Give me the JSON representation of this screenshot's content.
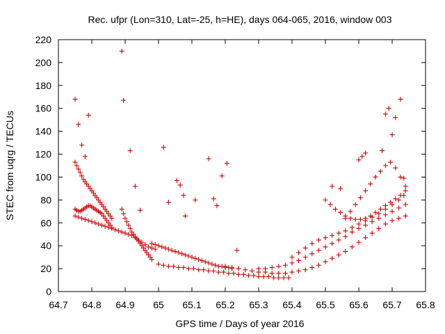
{
  "chart_data": {
    "type": "scatter",
    "title": "Rec. ufpr (Lon=310, Lat=-25, h=HE), days 064-065, 2016, window 003",
    "xlabel": "GPS time / Days of year 2016",
    "ylabel": "STEC from uqrg / TECUs",
    "xlim": [
      64.7,
      65.8
    ],
    "ylim": [
      0,
      220
    ],
    "xticks": [
      "64.7",
      "64.8",
      "64.9",
      "65",
      "65.1",
      "65.2",
      "65.3",
      "65.4",
      "65.5",
      "65.6",
      "65.7",
      "65.8"
    ],
    "yticks": [
      "0",
      "20",
      "40",
      "60",
      "80",
      "100",
      "120",
      "140",
      "160",
      "180",
      "200",
      "220"
    ],
    "grid": false,
    "legend": "none",
    "marker": "plus",
    "color": "#cc0000",
    "series": [
      {
        "x": [
          64.75,
          64.755,
          64.76,
          64.765,
          64.77,
          64.775,
          64.78,
          64.785,
          64.79,
          64.795,
          64.8,
          64.805,
          64.81,
          64.815,
          64.82,
          64.825,
          64.83,
          64.835,
          64.84,
          64.845,
          64.85,
          64.855,
          64.86
        ],
        "y": [
          113,
          110,
          107,
          104,
          101,
          98,
          96,
          94,
          92,
          90,
          88,
          86,
          84,
          82,
          80,
          78,
          76,
          74,
          72,
          70,
          68,
          66,
          64
        ]
      },
      {
        "x": [
          64.75,
          64.755,
          64.76,
          64.765,
          64.77,
          64.775,
          64.78,
          64.785,
          64.79,
          64.795,
          64.8,
          64.805,
          64.81,
          64.815,
          64.82,
          64.825,
          64.83,
          64.835,
          64.84,
          64.845,
          64.85,
          64.855,
          64.86
        ],
        "y": [
          72,
          71,
          70,
          70,
          71,
          72,
          73,
          74,
          75,
          75,
          74,
          73,
          72,
          71,
          70,
          69,
          68,
          66,
          64,
          62,
          60,
          58,
          56
        ]
      },
      {
        "x": [
          64.75,
          64.76,
          64.77,
          64.78,
          64.79,
          64.8,
          64.81,
          64.82,
          64.83,
          64.84,
          64.85,
          64.86,
          64.87,
          64.88,
          64.89,
          64.9,
          64.91,
          64.92,
          64.93,
          64.94,
          64.95,
          64.96,
          64.97,
          64.98,
          64.99
        ],
        "y": [
          66,
          65,
          64,
          63,
          62,
          61,
          60,
          59,
          58,
          57,
          56,
          55,
          54,
          53,
          52,
          51,
          50,
          49,
          47,
          45,
          43,
          41,
          39,
          38,
          37
        ]
      },
      {
        "x": [
          64.89,
          64.895,
          64.9,
          64.905,
          64.91,
          64.915,
          64.92,
          64.925,
          64.93,
          64.935,
          64.94,
          64.945,
          64.95,
          64.955,
          64.96,
          64.965,
          64.97,
          64.975,
          64.98
        ],
        "y": [
          72,
          68,
          64,
          61,
          58,
          55,
          52,
          50,
          48,
          46,
          44,
          42,
          40,
          38,
          36,
          34,
          32,
          30,
          28
        ]
      },
      {
        "x": [
          64.98,
          64.99,
          65.0,
          65.01,
          65.02,
          65.03,
          65.04,
          65.05,
          65.06,
          65.07,
          65.08,
          65.09,
          65.1,
          65.11,
          65.12,
          65.13,
          65.14,
          65.15,
          65.16,
          65.17,
          65.18,
          65.19,
          65.2,
          65.21,
          65.22
        ],
        "y": [
          42,
          41,
          40,
          39,
          38,
          37,
          36,
          35,
          34,
          33,
          32,
          31,
          30,
          29,
          28,
          27,
          26,
          25,
          24,
          23,
          22,
          22,
          21,
          21,
          20
        ]
      },
      {
        "x": [
          65.0,
          65.015,
          65.03,
          65.045,
          65.06,
          65.075,
          65.09,
          65.105,
          65.12,
          65.135,
          65.15,
          65.165,
          65.18,
          65.195,
          65.21,
          65.225,
          65.24,
          65.255,
          65.27,
          65.285,
          65.3,
          65.315,
          65.33,
          65.345,
          65.36,
          65.375,
          65.39
        ],
        "y": [
          24,
          23,
          22,
          22,
          21,
          21,
          20,
          20,
          19,
          19,
          18,
          18,
          17,
          17,
          16,
          16,
          15,
          15,
          14,
          14,
          13,
          13,
          13,
          12,
          12,
          12,
          12
        ]
      },
      {
        "x": [
          65.2,
          65.22,
          65.24,
          65.26,
          65.28,
          65.3,
          65.32,
          65.34,
          65.36,
          65.38,
          65.4,
          65.42,
          65.44,
          65.46,
          65.48,
          65.5,
          65.52,
          65.54,
          65.56,
          65.58,
          65.6,
          65.62,
          65.64,
          65.66,
          65.68,
          65.7,
          65.72,
          65.74
        ],
        "y": [
          22,
          21,
          20,
          19,
          18,
          17,
          17,
          16,
          16,
          16,
          17,
          18,
          19,
          21,
          23,
          26,
          29,
          32,
          35,
          39,
          43,
          47,
          51,
          55,
          59,
          62,
          64,
          66
        ]
      },
      {
        "x": [
          65.3,
          65.32,
          65.34,
          65.36,
          65.38,
          65.4,
          65.42,
          65.44,
          65.46,
          65.48,
          65.5,
          65.52,
          65.54,
          65.56,
          65.58,
          65.6,
          65.62,
          65.64,
          65.66,
          65.68,
          65.7,
          65.72
        ],
        "y": [
          20,
          20,
          21,
          22,
          23,
          25,
          27,
          30,
          33,
          36,
          39,
          42,
          45,
          48,
          52,
          55,
          58,
          61,
          64,
          67,
          70,
          73
        ]
      },
      {
        "x": [
          65.4,
          65.42,
          65.44,
          65.46,
          65.48,
          65.5,
          65.52,
          65.54,
          65.56,
          65.58,
          65.6,
          65.62,
          65.64,
          65.66,
          65.68,
          65.7,
          65.72,
          65.735
        ],
        "y": [
          30,
          34,
          38,
          42,
          45,
          47,
          49,
          51,
          53,
          56,
          59,
          62,
          65,
          68,
          72,
          76,
          80,
          84
        ]
      },
      {
        "x": [
          65.5,
          65.515,
          65.53,
          65.545,
          65.56,
          65.575,
          65.59,
          65.605,
          65.62,
          65.635,
          65.65,
          65.665,
          65.68,
          65.695,
          65.71,
          65.725,
          65.74
        ],
        "y": [
          80,
          76,
          72,
          69,
          66,
          64,
          63,
          63,
          64,
          66,
          69,
          72,
          75,
          78,
          81,
          84,
          88
        ]
      },
      {
        "x": [
          65.56,
          65.575,
          65.59,
          65.605,
          65.62,
          65.635,
          65.65,
          65.665,
          65.68,
          65.695,
          65.71,
          65.725,
          65.74
        ],
        "y": [
          64,
          70,
          76,
          82,
          88,
          94,
          100,
          105,
          110,
          113,
          108,
          100,
          92
        ]
      },
      {
        "x": [
          64.75,
          64.76,
          64.77,
          64.78,
          64.79,
          64.89,
          64.895,
          64.915,
          64.93,
          64.945,
          65.015,
          65.03,
          65.055,
          65.065,
          65.075,
          65.08,
          65.11,
          65.15,
          65.165,
          65.175,
          65.19,
          65.205,
          65.235,
          65.52,
          65.545,
          65.6,
          65.61,
          65.62,
          65.65,
          65.67,
          65.68,
          65.69,
          65.7,
          65.71,
          65.725,
          65.735,
          65.74
        ],
        "y": [
          168,
          146,
          128,
          118,
          154,
          210,
          167,
          123,
          92,
          71,
          126,
          78,
          97,
          93,
          84,
          66,
          80,
          116,
          81,
          75,
          101,
          112,
          36,
          92,
          90,
          115,
          118,
          121,
          100,
          123,
          155,
          160,
          137,
          152,
          168,
          99,
          76
        ]
      }
    ]
  }
}
